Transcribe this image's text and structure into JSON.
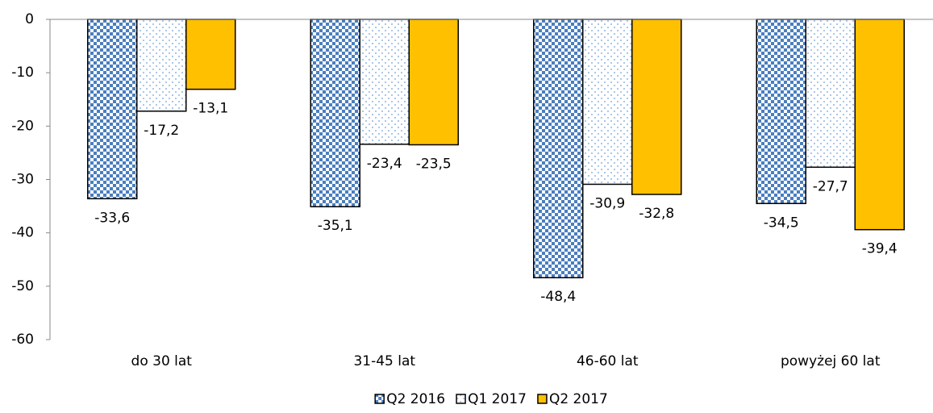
{
  "chart_data": {
    "type": "bar",
    "categories": [
      "do 30 lat",
      "31-45 lat",
      "46-60 lat",
      "powyżej 60 lat"
    ],
    "series": [
      {
        "name": "Q2 2016",
        "color": "#4a7ebf",
        "pattern": "checker",
        "values": [
          -33.6,
          -35.1,
          -48.4,
          -34.5
        ],
        "value_labels": [
          "-33,6",
          "-35,1",
          "-48,4",
          "-34,5"
        ]
      },
      {
        "name": "Q1 2017",
        "color": "#6f9fd8",
        "pattern": "dots",
        "values": [
          -17.2,
          -23.4,
          -30.9,
          -27.7
        ],
        "value_labels": [
          "-17,2",
          "-23,4",
          "-30,9",
          "-27,7"
        ]
      },
      {
        "name": "Q2 2017",
        "color": "#ffc000",
        "pattern": "solid",
        "values": [
          -13.1,
          -23.5,
          -32.8,
          -39.4
        ],
        "value_labels": [
          "-13,1",
          "-23,5",
          "-32,8",
          "-39,4"
        ]
      }
    ],
    "ylim": [
      -60,
      0
    ],
    "yticks": [
      0,
      -10,
      -20,
      -30,
      -40,
      -50,
      -60
    ],
    "legend": "bottom"
  }
}
